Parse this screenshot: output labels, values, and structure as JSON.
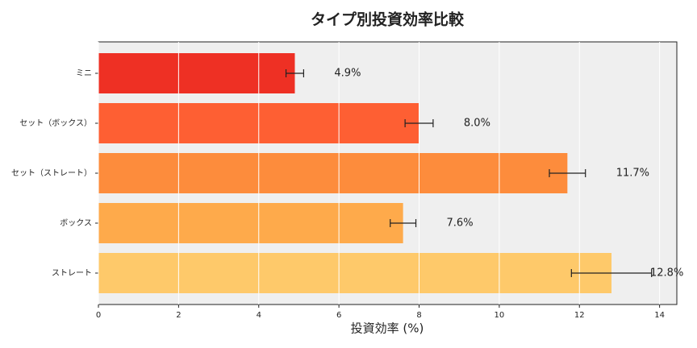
{
  "chart_data": {
    "type": "barh",
    "title": "タイプ別投資効率比較",
    "xlabel": "投資効率 (%)",
    "categories": [
      "ミニ",
      "セット（ボックス）",
      "セット（ストレート）",
      "ボックス",
      "ストレート"
    ],
    "values": [
      4.9,
      8.0,
      11.7,
      7.6,
      12.8
    ],
    "errors": [
      0.22,
      0.35,
      0.45,
      0.32,
      1.0
    ],
    "value_labels": [
      "4.9%",
      "8.0%",
      "11.7%",
      "7.6%",
      "12.8%"
    ],
    "colors": [
      "#ee3024",
      "#fe5f33",
      "#fd8c3c",
      "#feaa4b",
      "#fec96a"
    ],
    "xlim": [
      0,
      14.43
    ],
    "xticks": [
      0,
      2,
      4,
      6,
      8,
      10,
      12,
      14
    ],
    "grid": true
  }
}
